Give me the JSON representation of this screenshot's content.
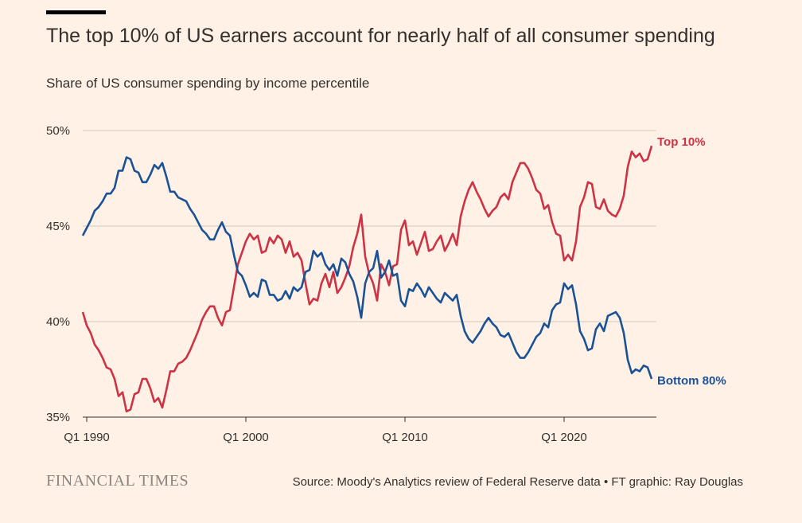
{
  "header": {
    "title": "The top 10% of US earners account for nearly half of all consumer spending",
    "subtitle": "Share of US consumer spending by income percentile"
  },
  "footer": {
    "brand": "FINANCIAL TIMES",
    "source": "Source: Moody's Analytics review of Federal Reserve data • FT graphic: Ray Douglas"
  },
  "colors": {
    "background": "#fff1e5",
    "top10": "#cc3344",
    "bottom80": "#1b5296",
    "grid": "#cfc6bd",
    "axis": "#33302e"
  },
  "chart_data": {
    "type": "line",
    "title": "The top 10% of US earners account for nearly half of all consumer spending",
    "subtitle": "Share of US consumer spending by income percentile",
    "xlabel": "",
    "ylabel": "",
    "xlim": [
      1990.0,
      2025.75
    ],
    "ylim": [
      35,
      50
    ],
    "y_ticks": [
      35,
      40,
      45,
      50
    ],
    "y_tick_labels": [
      "35%",
      "40%",
      "45%",
      "50%"
    ],
    "x_ticks": [
      1990,
      2000,
      2010,
      2020
    ],
    "x_tick_labels": [
      "Q1 1990",
      "Q1 2000",
      "Q1 2010",
      "Q1 2020"
    ],
    "grid": true,
    "series": [
      {
        "name": "Top 10%",
        "color": "#cc3344",
        "label": "Top 10%",
        "points": [
          [
            1989.75,
            40.5
          ],
          [
            1990.0,
            39.8
          ],
          [
            1990.25,
            39.4
          ],
          [
            1990.5,
            38.8
          ],
          [
            1990.75,
            38.5
          ],
          [
            1991.0,
            38.1
          ],
          [
            1991.25,
            37.6
          ],
          [
            1991.5,
            37.5
          ],
          [
            1991.75,
            37.0
          ],
          [
            1992.0,
            36.1
          ],
          [
            1992.25,
            36.3
          ],
          [
            1992.5,
            35.3
          ],
          [
            1992.75,
            35.4
          ],
          [
            1993.0,
            36.2
          ],
          [
            1993.25,
            36.3
          ],
          [
            1993.5,
            37.0
          ],
          [
            1993.75,
            37.0
          ],
          [
            1994.0,
            36.5
          ],
          [
            1994.25,
            35.8
          ],
          [
            1994.5,
            36.0
          ],
          [
            1994.75,
            35.5
          ],
          [
            1995.0,
            36.4
          ],
          [
            1995.25,
            37.4
          ],
          [
            1995.5,
            37.4
          ],
          [
            1995.75,
            37.8
          ],
          [
            1996.0,
            37.9
          ],
          [
            1996.25,
            38.1
          ],
          [
            1996.5,
            38.5
          ],
          [
            1996.75,
            39.0
          ],
          [
            1997.0,
            39.5
          ],
          [
            1997.25,
            40.1
          ],
          [
            1997.5,
            40.5
          ],
          [
            1997.75,
            40.8
          ],
          [
            1998.0,
            40.8
          ],
          [
            1998.25,
            40.2
          ],
          [
            1998.5,
            39.8
          ],
          [
            1998.75,
            40.5
          ],
          [
            1999.0,
            40.6
          ],
          [
            1999.25,
            41.8
          ],
          [
            1999.5,
            43.0
          ],
          [
            1999.75,
            43.6
          ],
          [
            2000.0,
            44.2
          ],
          [
            2000.25,
            44.6
          ],
          [
            2000.5,
            44.3
          ],
          [
            2000.75,
            44.5
          ],
          [
            2001.0,
            43.6
          ],
          [
            2001.25,
            43.7
          ],
          [
            2001.5,
            44.4
          ],
          [
            2001.75,
            44.1
          ],
          [
            2002.0,
            44.5
          ],
          [
            2002.25,
            44.3
          ],
          [
            2002.5,
            43.6
          ],
          [
            2002.75,
            44.2
          ],
          [
            2003.0,
            43.4
          ],
          [
            2003.25,
            43.6
          ],
          [
            2003.5,
            43.2
          ],
          [
            2003.75,
            42.0
          ],
          [
            2004.0,
            40.9
          ],
          [
            2004.25,
            41.2
          ],
          [
            2004.5,
            41.1
          ],
          [
            2004.75,
            42.0
          ],
          [
            2005.0,
            42.5
          ],
          [
            2005.25,
            41.8
          ],
          [
            2005.5,
            42.6
          ],
          [
            2005.75,
            41.5
          ],
          [
            2006.0,
            41.8
          ],
          [
            2006.25,
            42.3
          ],
          [
            2006.5,
            42.9
          ],
          [
            2006.75,
            43.9
          ],
          [
            2007.0,
            44.6
          ],
          [
            2007.25,
            45.6
          ],
          [
            2007.5,
            43.4
          ],
          [
            2007.75,
            42.5
          ],
          [
            2008.0,
            42.0
          ],
          [
            2008.25,
            41.1
          ],
          [
            2008.5,
            43.0
          ],
          [
            2008.75,
            42.6
          ],
          [
            2009.0,
            41.9
          ],
          [
            2009.25,
            42.9
          ],
          [
            2009.5,
            43.0
          ],
          [
            2009.75,
            44.8
          ],
          [
            2010.0,
            45.3
          ],
          [
            2010.25,
            44.0
          ],
          [
            2010.5,
            44.2
          ],
          [
            2010.75,
            43.5
          ],
          [
            2011.0,
            44.1
          ],
          [
            2011.25,
            44.7
          ],
          [
            2011.5,
            43.7
          ],
          [
            2011.75,
            43.8
          ],
          [
            2012.0,
            44.2
          ],
          [
            2012.25,
            44.5
          ],
          [
            2012.5,
            43.7
          ],
          [
            2012.75,
            44.1
          ],
          [
            2013.0,
            44.6
          ],
          [
            2013.25,
            44.0
          ],
          [
            2013.5,
            45.5
          ],
          [
            2013.75,
            46.3
          ],
          [
            2014.0,
            46.9
          ],
          [
            2014.25,
            47.3
          ],
          [
            2014.5,
            46.8
          ],
          [
            2014.75,
            46.4
          ],
          [
            2015.0,
            45.9
          ],
          [
            2015.25,
            45.5
          ],
          [
            2015.5,
            45.8
          ],
          [
            2015.75,
            46.0
          ],
          [
            2016.0,
            46.5
          ],
          [
            2016.25,
            46.7
          ],
          [
            2016.5,
            46.4
          ],
          [
            2016.75,
            47.3
          ],
          [
            2017.0,
            47.8
          ],
          [
            2017.25,
            48.3
          ],
          [
            2017.5,
            48.3
          ],
          [
            2017.75,
            48.0
          ],
          [
            2018.0,
            47.5
          ],
          [
            2018.25,
            46.9
          ],
          [
            2018.5,
            46.7
          ],
          [
            2018.75,
            45.9
          ],
          [
            2019.0,
            46.1
          ],
          [
            2019.25,
            45.2
          ],
          [
            2019.5,
            44.6
          ],
          [
            2019.75,
            44.5
          ],
          [
            2020.0,
            43.2
          ],
          [
            2020.25,
            43.5
          ],
          [
            2020.5,
            43.2
          ],
          [
            2020.75,
            44.2
          ],
          [
            2021.0,
            46.0
          ],
          [
            2021.25,
            46.5
          ],
          [
            2021.5,
            47.3
          ],
          [
            2021.75,
            47.2
          ],
          [
            2022.0,
            46.0
          ],
          [
            2022.25,
            45.9
          ],
          [
            2022.5,
            46.4
          ],
          [
            2022.75,
            45.8
          ],
          [
            2023.0,
            45.6
          ],
          [
            2023.25,
            45.5
          ],
          [
            2023.5,
            45.9
          ],
          [
            2023.75,
            46.6
          ],
          [
            2024.0,
            48.1
          ],
          [
            2024.25,
            48.9
          ],
          [
            2024.5,
            48.6
          ],
          [
            2024.75,
            48.8
          ],
          [
            2025.0,
            48.4
          ],
          [
            2025.25,
            48.5
          ],
          [
            2025.5,
            49.2
          ]
        ]
      },
      {
        "name": "Bottom 80%",
        "color": "#1b5296",
        "label": "Bottom 80%",
        "points": [
          [
            1989.75,
            44.5
          ],
          [
            1990.0,
            44.9
          ],
          [
            1990.25,
            45.3
          ],
          [
            1990.5,
            45.8
          ],
          [
            1990.75,
            46.0
          ],
          [
            1991.0,
            46.3
          ],
          [
            1991.25,
            46.7
          ],
          [
            1991.5,
            46.7
          ],
          [
            1991.75,
            47.0
          ],
          [
            1992.0,
            47.9
          ],
          [
            1992.25,
            47.9
          ],
          [
            1992.5,
            48.6
          ],
          [
            1992.75,
            48.5
          ],
          [
            1993.0,
            47.9
          ],
          [
            1993.25,
            47.8
          ],
          [
            1993.5,
            47.3
          ],
          [
            1993.75,
            47.3
          ],
          [
            1994.0,
            47.7
          ],
          [
            1994.25,
            48.2
          ],
          [
            1994.5,
            48.0
          ],
          [
            1994.75,
            48.3
          ],
          [
            1995.0,
            47.6
          ],
          [
            1995.25,
            46.8
          ],
          [
            1995.5,
            46.8
          ],
          [
            1995.75,
            46.5
          ],
          [
            1996.0,
            46.4
          ],
          [
            1996.25,
            46.3
          ],
          [
            1996.5,
            45.9
          ],
          [
            1996.75,
            45.6
          ],
          [
            1997.0,
            45.2
          ],
          [
            1997.25,
            44.8
          ],
          [
            1997.5,
            44.6
          ],
          [
            1997.75,
            44.3
          ],
          [
            1998.0,
            44.3
          ],
          [
            1998.25,
            44.8
          ],
          [
            1998.5,
            45.2
          ],
          [
            1998.75,
            44.7
          ],
          [
            1999.0,
            44.5
          ],
          [
            1999.25,
            43.5
          ],
          [
            1999.5,
            42.6
          ],
          [
            1999.75,
            42.4
          ],
          [
            2000.0,
            41.9
          ],
          [
            2000.25,
            41.3
          ],
          [
            2000.5,
            41.5
          ],
          [
            2000.75,
            41.3
          ],
          [
            2001.0,
            42.2
          ],
          [
            2001.25,
            42.1
          ],
          [
            2001.5,
            41.4
          ],
          [
            2001.75,
            41.4
          ],
          [
            2002.0,
            41.1
          ],
          [
            2002.25,
            41.2
          ],
          [
            2002.5,
            41.6
          ],
          [
            2002.75,
            41.2
          ],
          [
            2003.0,
            41.8
          ],
          [
            2003.25,
            41.6
          ],
          [
            2003.5,
            41.8
          ],
          [
            2003.75,
            42.6
          ],
          [
            2004.0,
            42.7
          ],
          [
            2004.25,
            43.7
          ],
          [
            2004.5,
            43.4
          ],
          [
            2004.75,
            43.6
          ],
          [
            2005.0,
            43.0
          ],
          [
            2005.25,
            42.7
          ],
          [
            2005.5,
            43.0
          ],
          [
            2005.75,
            42.4
          ],
          [
            2006.0,
            43.3
          ],
          [
            2006.25,
            43.1
          ],
          [
            2006.5,
            42.5
          ],
          [
            2006.75,
            42.1
          ],
          [
            2007.0,
            41.3
          ],
          [
            2007.25,
            40.2
          ],
          [
            2007.5,
            42.0
          ],
          [
            2007.75,
            42.6
          ],
          [
            2008.0,
            42.8
          ],
          [
            2008.25,
            43.7
          ],
          [
            2008.5,
            42.3
          ],
          [
            2008.75,
            42.6
          ],
          [
            2009.0,
            43.2
          ],
          [
            2009.25,
            42.4
          ],
          [
            2009.5,
            42.5
          ],
          [
            2009.75,
            41.1
          ],
          [
            2010.0,
            40.8
          ],
          [
            2010.25,
            41.7
          ],
          [
            2010.5,
            41.6
          ],
          [
            2010.75,
            42.0
          ],
          [
            2011.0,
            41.7
          ],
          [
            2011.25,
            41.3
          ],
          [
            2011.5,
            41.8
          ],
          [
            2011.75,
            41.5
          ],
          [
            2012.0,
            41.2
          ],
          [
            2012.25,
            41.0
          ],
          [
            2012.5,
            41.5
          ],
          [
            2012.75,
            41.3
          ],
          [
            2013.0,
            41.1
          ],
          [
            2013.25,
            41.4
          ],
          [
            2013.5,
            40.3
          ],
          [
            2013.75,
            39.5
          ],
          [
            2014.0,
            39.1
          ],
          [
            2014.25,
            38.9
          ],
          [
            2014.5,
            39.2
          ],
          [
            2014.75,
            39.5
          ],
          [
            2015.0,
            39.9
          ],
          [
            2015.25,
            40.2
          ],
          [
            2015.5,
            39.9
          ],
          [
            2015.75,
            39.7
          ],
          [
            2016.0,
            39.3
          ],
          [
            2016.25,
            39.2
          ],
          [
            2016.5,
            39.4
          ],
          [
            2016.75,
            38.9
          ],
          [
            2017.0,
            38.4
          ],
          [
            2017.25,
            38.1
          ],
          [
            2017.5,
            38.1
          ],
          [
            2017.75,
            38.4
          ],
          [
            2018.0,
            38.8
          ],
          [
            2018.25,
            39.2
          ],
          [
            2018.5,
            39.4
          ],
          [
            2018.75,
            39.9
          ],
          [
            2019.0,
            39.7
          ],
          [
            2019.25,
            40.6
          ],
          [
            2019.5,
            40.9
          ],
          [
            2019.75,
            41.0
          ],
          [
            2020.0,
            42.0
          ],
          [
            2020.25,
            41.7
          ],
          [
            2020.5,
            41.9
          ],
          [
            2020.75,
            40.9
          ],
          [
            2021.0,
            39.5
          ],
          [
            2021.25,
            39.1
          ],
          [
            2021.5,
            38.5
          ],
          [
            2021.75,
            38.6
          ],
          [
            2022.0,
            39.6
          ],
          [
            2022.25,
            39.9
          ],
          [
            2022.5,
            39.5
          ],
          [
            2022.75,
            40.3
          ],
          [
            2023.0,
            40.4
          ],
          [
            2023.25,
            40.5
          ],
          [
            2023.5,
            40.2
          ],
          [
            2023.75,
            39.4
          ],
          [
            2024.0,
            38.0
          ],
          [
            2024.25,
            37.3
          ],
          [
            2024.5,
            37.5
          ],
          [
            2024.75,
            37.4
          ],
          [
            2025.0,
            37.7
          ],
          [
            2025.25,
            37.6
          ],
          [
            2025.5,
            37.0
          ]
        ]
      }
    ]
  }
}
